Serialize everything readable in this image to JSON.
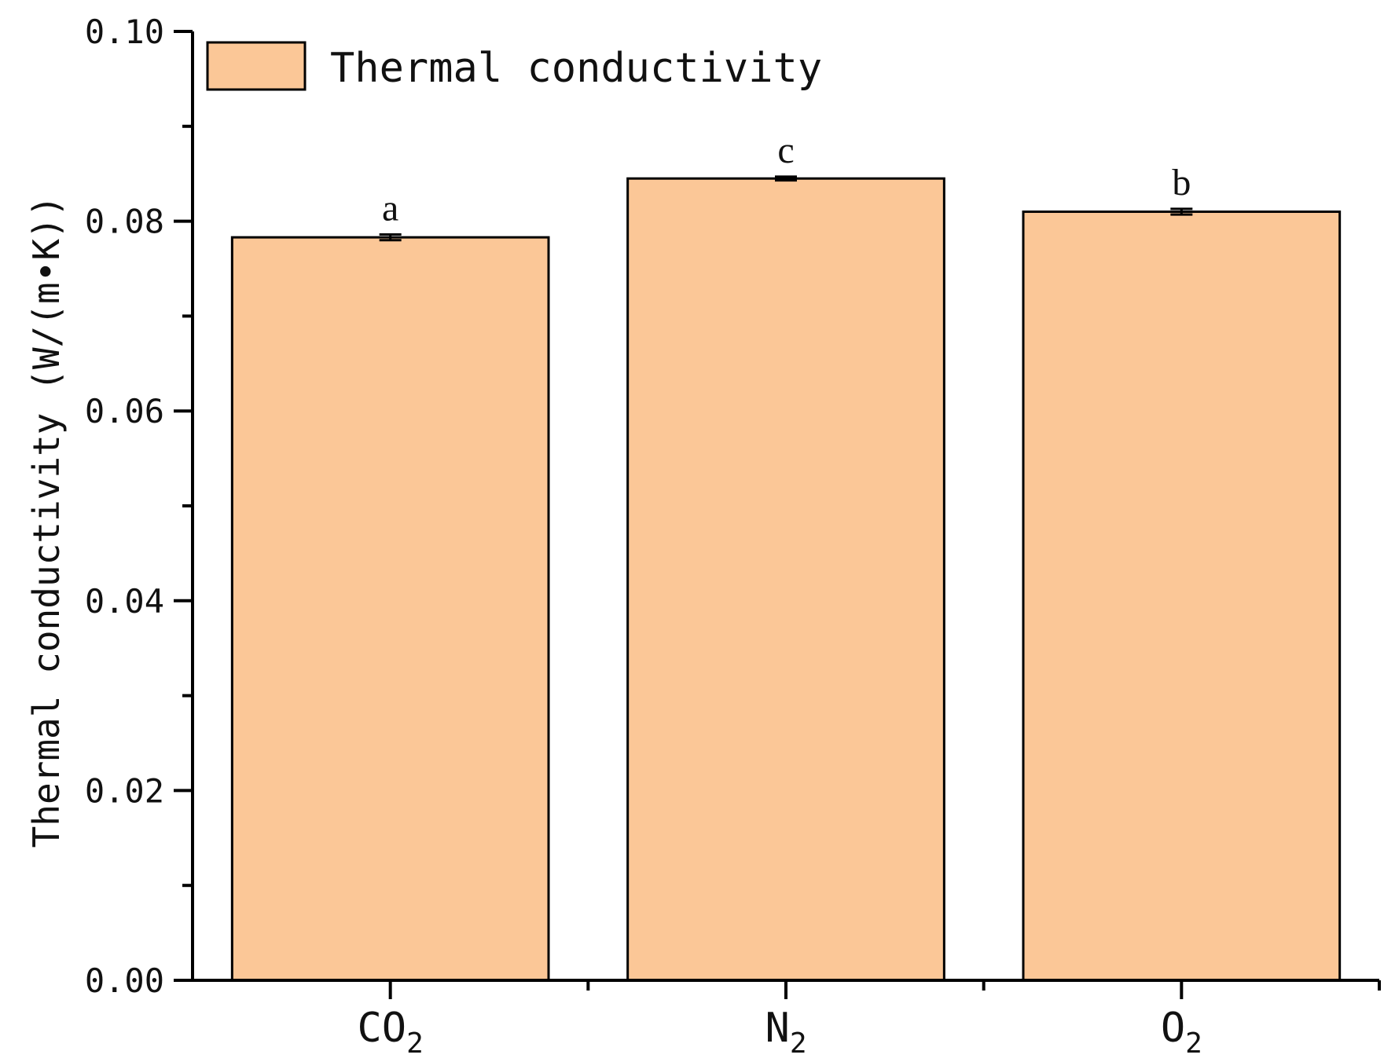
{
  "chart_data": {
    "type": "bar",
    "categories": [
      {
        "base": "CO",
        "sub": "2"
      },
      {
        "base": "N",
        "sub": "2"
      },
      {
        "base": "O",
        "sub": "2"
      }
    ],
    "series": [
      {
        "name": "Thermal conductivity",
        "values": [
          0.0783,
          0.0845,
          0.081
        ],
        "errors": [
          0.0003,
          0.0002,
          0.0003
        ],
        "significance": [
          "a",
          "c",
          "b"
        ],
        "color": "#FBC797"
      }
    ],
    "title": "",
    "xlabel": "",
    "ylabel": "Thermal conductivity (W/(m•K))",
    "ylim": [
      0,
      0.1
    ],
    "yticks": [
      "0.00",
      "0.02",
      "0.04",
      "0.06",
      "0.08",
      "0.10"
    ],
    "yminor_step": 0.01,
    "grid": false,
    "legend": {
      "position": "top-left",
      "entries": [
        "Thermal conductivity"
      ]
    }
  }
}
